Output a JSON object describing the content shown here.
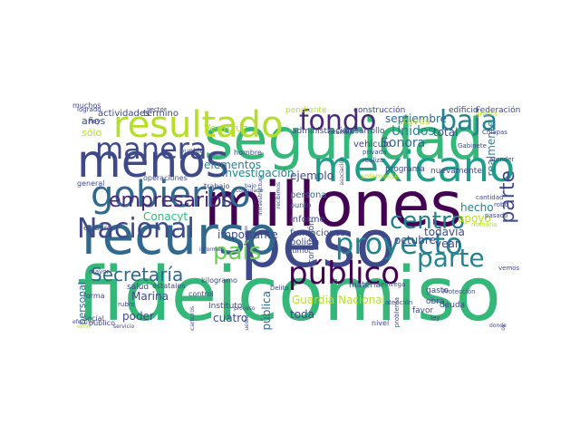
{
  "wordcloud": {
    "palette": [
      "#440154",
      "#482878",
      "#3e4989",
      "#31688e",
      "#26828e",
      "#1f9e89",
      "#35b779",
      "#6ece58",
      "#b5de2b",
      "#fde725"
    ],
    "words": [
      {
        "text": "fideicomiso",
        "weight": 100,
        "color": "#35b779",
        "rotated": false
      },
      {
        "text": "peso",
        "weight": 95,
        "color": "#3e4989",
        "rotated": false
      },
      {
        "text": "millones",
        "weight": 92,
        "color": "#440154",
        "rotated": false
      },
      {
        "text": "recurso",
        "weight": 90,
        "color": "#31688e",
        "rotated": false
      },
      {
        "text": "seguridad",
        "weight": 88,
        "color": "#35b779",
        "rotated": false
      },
      {
        "text": "menos",
        "weight": 75,
        "color": "#3e4989",
        "rotated": false
      },
      {
        "text": "resultado",
        "weight": 70,
        "color": "#b5de2b",
        "rotated": false
      },
      {
        "text": "mexicano",
        "weight": 68,
        "color": "#1f9e89",
        "rotated": false
      },
      {
        "text": "gobierno",
        "weight": 58,
        "color": "#31688e",
        "rotated": false
      },
      {
        "text": "fondo",
        "weight": 55,
        "color": "#482878",
        "rotated": false
      },
      {
        "text": "público",
        "weight": 55,
        "color": "#440154",
        "rotated": false
      },
      {
        "text": "Nacional",
        "weight": 52,
        "color": "#3e4989",
        "rotated": false
      },
      {
        "text": "proyecto",
        "weight": 52,
        "color": "#26828e",
        "rotated": false
      },
      {
        "text": "manera",
        "weight": 50,
        "color": "#3e4989",
        "rotated": false
      },
      {
        "text": "baja",
        "weight": 50,
        "color": "#26828e",
        "rotated": false
      },
      {
        "text": "país",
        "weight": 45,
        "color": "#6ece58",
        "rotated": false
      },
      {
        "text": "centro",
        "weight": 45,
        "color": "#26828e",
        "rotated": false
      },
      {
        "text": "parte",
        "weight": 44,
        "color": "#26828e",
        "rotated": false
      },
      {
        "text": "empresarios",
        "weight": 40,
        "color": "#482878",
        "rotated": false
      },
      {
        "text": "Secretaría",
        "weight": 36,
        "color": "#31688e",
        "rotated": false
      },
      {
        "text": "parte",
        "weight": 30,
        "color": "#3e4989",
        "rotated": true
      },
      {
        "text": "Guardia Nacional",
        "weight": 22,
        "color": "#b5de2b",
        "rotated": false
      },
      {
        "text": "Sonora",
        "weight": 22,
        "color": "#31688e",
        "rotated": false
      },
      {
        "text": "Unidos",
        "weight": 20,
        "color": "#26828e",
        "rotated": false
      },
      {
        "text": "elementos",
        "weight": 20,
        "color": "#26828e",
        "rotated": false
      },
      {
        "text": "Marina",
        "weight": 20,
        "color": "#3e4989",
        "rotated": false
      },
      {
        "text": "República",
        "weight": 20,
        "color": "#31688e",
        "rotated": true
      },
      {
        "text": "investigación",
        "weight": 18,
        "color": "#26828e",
        "rotated": false
      },
      {
        "text": "septiembre",
        "weight": 18,
        "color": "#31688e",
        "rotated": false
      },
      {
        "text": "todavía",
        "weight": 18,
        "color": "#3e4989",
        "rotated": false
      },
      {
        "text": "apoyo",
        "weight": 18,
        "color": "#b5de2b",
        "rotated": false
      },
      {
        "text": "hecho",
        "weight": 17,
        "color": "#26828e",
        "rotated": false
      },
      {
        "text": "importante",
        "weight": 16,
        "color": "#3e4989",
        "rotated": false
      },
      {
        "text": "Conacyt",
        "weight": 16,
        "color": "#35b779",
        "rotated": false
      },
      {
        "text": "ejemplo",
        "weight": 16,
        "color": "#3e4989",
        "rotated": false
      },
      {
        "text": "octubre",
        "weight": 16,
        "color": "#3e4989",
        "rotated": false
      },
      {
        "text": "total",
        "weight": 16,
        "color": "#3e4989",
        "rotated": false
      },
      {
        "text": "realmente",
        "weight": 16,
        "color": "#26828e",
        "rotated": true
      },
      {
        "text": "vean",
        "weight": 16,
        "color": "#3e4989",
        "rotated": false
      },
      {
        "text": "toda",
        "weight": 15,
        "color": "#3e4989",
        "rotated": false
      },
      {
        "text": "poder",
        "weight": 15,
        "color": "#3e4989",
        "rotated": false
      },
      {
        "text": "personal",
        "weight": 15,
        "color": "#31688e",
        "rotated": true
      },
      {
        "text": "cuatro",
        "weight": 15,
        "color": "#3e4989",
        "rotated": false
      },
      {
        "text": "años",
        "weight": 14,
        "color": "#3e4989",
        "rotated": false
      },
      {
        "text": "sólo",
        "weight": 14,
        "color": "#b5de2b",
        "rotated": false
      },
      {
        "text": "través",
        "weight": 14,
        "color": "#b5de2b",
        "rotated": false
      },
      {
        "text": "informe",
        "weight": 12,
        "color": "#3e4989",
        "rotated": false
      },
      {
        "text": "corrupción",
        "weight": 12,
        "color": "#3e4989",
        "rotated": true
      },
      {
        "text": "Veracruz",
        "weight": 12,
        "color": "#b5de2b",
        "rotated": false
      },
      {
        "text": "vehículo",
        "weight": 11,
        "color": "#3e4989",
        "rotated": false
      },
      {
        "text": "persona",
        "weight": 11,
        "color": "#31688e",
        "rotated": false
      },
      {
        "text": "actividades",
        "weight": 11,
        "color": "#3e4989",
        "rotated": false
      },
      {
        "text": "término",
        "weight": 11,
        "color": "#3e4989",
        "rotated": false
      },
      {
        "text": "construcción",
        "weight": 10,
        "color": "#3e4989",
        "rotated": false
      },
      {
        "text": "administración",
        "weight": 10,
        "color": "#3e4989",
        "rotated": false
      },
      {
        "text": "desarrollo",
        "weight": 10,
        "color": "#3e4989",
        "rotated": false
      },
      {
        "text": "Federación",
        "weight": 10,
        "color": "#3e4989",
        "rotated": false
      },
      {
        "text": "edificio",
        "weight": 10,
        "color": "#3e4989",
        "rotated": false
      },
      {
        "text": "pendiente",
        "weight": 10,
        "color": "#b5de2b",
        "rotated": false
      },
      {
        "text": "fundaciones",
        "weight": 11,
        "color": "#3e4989",
        "rotated": false
      },
      {
        "text": "policía",
        "weight": 11,
        "color": "#3e4989",
        "rotated": false
      },
      {
        "text": "programa",
        "weight": 10,
        "color": "#3e4989",
        "rotated": false
      },
      {
        "text": "nuevamente",
        "weight": 10,
        "color": "#3e4989",
        "rotated": false
      },
      {
        "text": "materia",
        "weight": 10,
        "color": "#3e4989",
        "rotated": false
      },
      {
        "text": "obra",
        "weight": 10,
        "color": "#3e4989",
        "rotated": false
      },
      {
        "text": "favor",
        "weight": 10,
        "color": "#3e4989",
        "rotated": false
      },
      {
        "text": "deuda",
        "weight": 10,
        "color": "#3e4989",
        "rotated": false
      },
      {
        "text": "salud",
        "weight": 10,
        "color": "#3e4989",
        "rotated": false
      },
      {
        "text": "Instituto",
        "weight": 10,
        "color": "#3e4989",
        "rotated": false
      },
      {
        "text": "kilogramo",
        "weight": 9,
        "color": "#3e4989",
        "rotated": false
      },
      {
        "text": "operaciones",
        "weight": 9,
        "color": "#3e4989",
        "rotated": false
      },
      {
        "text": "general",
        "weight": 9,
        "color": "#3e4989",
        "rotated": false
      },
      {
        "text": "trabajo",
        "weight": 9,
        "color": "#3e4989",
        "rotated": false
      },
      {
        "text": "control",
        "weight": 9,
        "color": "#3e4989",
        "rotated": false
      },
      {
        "text": "pueblo",
        "weight": 9,
        "color": "#3e4989",
        "rotated": false
      },
      {
        "text": "hombre",
        "weight": 9,
        "color": "#3e4989",
        "rotated": false
      },
      {
        "text": "punto",
        "weight": 9,
        "color": "#3e4989",
        "rotated": false
      },
      {
        "text": "solamente",
        "weight": 9,
        "color": "#b5de2b",
        "rotated": false
      },
      {
        "text": "último",
        "weight": 9,
        "color": "#3e4989",
        "rotated": false
      },
      {
        "text": "embargo",
        "weight": 9,
        "color": "#3e4989",
        "rotated": false
      },
      {
        "text": "estatales",
        "weight": 9,
        "color": "#3e4989",
        "rotated": false
      },
      {
        "text": "público",
        "weight": 9,
        "color": "#3e4989",
        "rotated": false
      },
      {
        "text": "social",
        "weight": 9,
        "color": "#3e4989",
        "rotated": false
      },
      {
        "text": "forma",
        "weight": 9,
        "color": "#3e4989",
        "rotated": false
      },
      {
        "text": "mayor",
        "weight": 8,
        "color": "#3e4989",
        "rotated": false
      },
      {
        "text": "rubro",
        "weight": 8,
        "color": "#3e4989",
        "rotated": false
      },
      {
        "text": "hoy",
        "weight": 8,
        "color": "#3e4989",
        "rotated": false
      },
      {
        "text": "logrado",
        "weight": 8,
        "color": "#3e4989",
        "rotated": false
      },
      {
        "text": "sector",
        "weight": 8,
        "color": "#3e4989",
        "rotated": false
      },
      {
        "text": "privada",
        "weight": 8,
        "color": "#3e4989",
        "rotated": false
      },
      {
        "text": "realiza",
        "weight": 8,
        "color": "#3e4989",
        "rotated": false
      },
      {
        "text": "examen",
        "weight": 8,
        "color": "#3e4989",
        "rotated": false
      },
      {
        "text": "atender",
        "weight": 8,
        "color": "#3e4989",
        "rotated": false
      },
      {
        "text": "Gabinete",
        "weight": 8,
        "color": "#3e4989",
        "rotated": false
      },
      {
        "text": "Chiapas",
        "weight": 8,
        "color": "#3e4989",
        "rotated": false
      },
      {
        "text": "gráfica",
        "weight": 8,
        "color": "#b5de2b",
        "rotated": false
      },
      {
        "text": "cantidad",
        "weight": 8,
        "color": "#3e4989",
        "rotated": false
      },
      {
        "text": "robo",
        "weight": 8,
        "color": "#3e4989",
        "rotated": false
      },
      {
        "text": "pasado",
        "weight": 8,
        "color": "#3e4989",
        "rotated": false
      },
      {
        "text": "mañana",
        "weight": 8,
        "color": "#b5de2b",
        "rotated": false
      },
      {
        "text": "Protección",
        "weight": 8,
        "color": "#3e4989",
        "rotated": false
      },
      {
        "text": "Delito",
        "weight": 8,
        "color": "#3e4989",
        "rotated": false
      },
      {
        "text": "entrega",
        "weight": 8,
        "color": "#3e4989",
        "rotated": false
      },
      {
        "text": "atención",
        "weight": 8,
        "color": "#3e4989",
        "rotated": false
      },
      {
        "text": "problema",
        "weight": 8,
        "color": "#3e4989",
        "rotated": true
      },
      {
        "text": "nivel",
        "weight": 8,
        "color": "#3e4989",
        "rotated": false
      },
      {
        "text": "gasto",
        "weight": 8,
        "color": "#3e4989",
        "rotated": false
      },
      {
        "text": "ley",
        "weight": 9,
        "color": "#3e4989",
        "rotated": false
      },
      {
        "text": "vemos",
        "weight": 8,
        "color": "#3e4989",
        "rotated": false
      },
      {
        "text": "grupos",
        "weight": 8,
        "color": "#3e4989",
        "rotated": true
      },
      {
        "text": "donde",
        "weight": 7,
        "color": "#3e4989",
        "rotated": false
      },
      {
        "text": "echo",
        "weight": 7,
        "color": "#b5de2b",
        "rotated": false
      },
      {
        "text": "servicio",
        "weight": 7,
        "color": "#3e4989",
        "rotated": false
      },
      {
        "text": "efectivo",
        "weight": 7,
        "color": "#3e4989",
        "rotated": false
      },
      {
        "text": "hidrocarburos",
        "weight": 7,
        "color": "#3e4989",
        "rotated": true
      },
      {
        "text": "asociación",
        "weight": 7,
        "color": "#3e4989",
        "rotated": true
      },
      {
        "text": "infraestructura",
        "weight": 7,
        "color": "#3e4989",
        "rotated": true
      },
      {
        "text": "recibimos",
        "weight": 7,
        "color": "#3e4989",
        "rotated": true
      },
      {
        "text": "presupuesto",
        "weight": 7,
        "color": "#3e4989",
        "rotated": true
      },
      {
        "text": "llevamos",
        "weight": 7,
        "color": "#3e4989",
        "rotated": true
      },
      {
        "text": "bajo",
        "weight": 6,
        "color": "#3e4989",
        "rotated": false
      },
      {
        "text": "consulado",
        "weight": 7,
        "color": "#3e4989",
        "rotated": false
      },
      {
        "text": "informar",
        "weight": 7,
        "color": "#3e4989",
        "rotated": false
      },
      {
        "text": "proceso",
        "weight": 6,
        "color": "#3e4989",
        "rotated": false
      },
      {
        "text": "muchos",
        "weight": 6,
        "color": "#3e4989",
        "rotated": false
      }
    ]
  }
}
